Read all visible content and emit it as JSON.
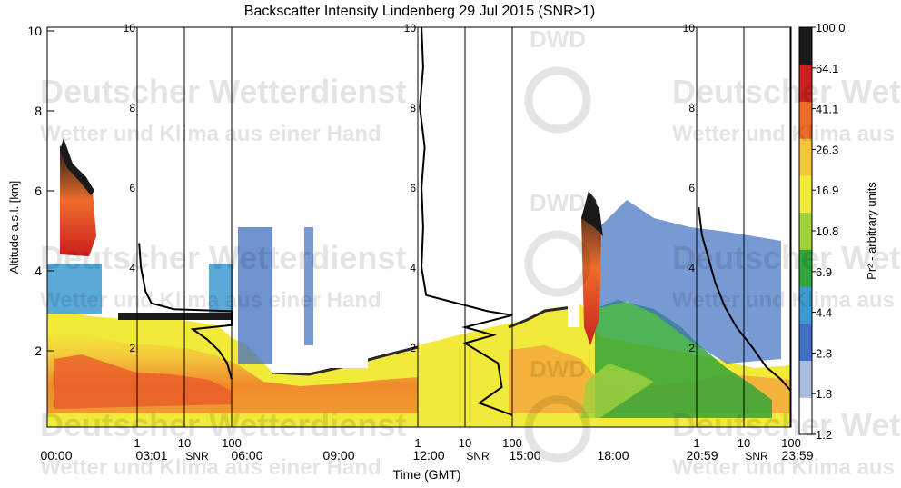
{
  "chart_data": {
    "type": "heatmap",
    "title": "Backscatter Intensity Lindenberg 29 Jul 2015 (SNR>1)",
    "xlabel": "Time (GMT)",
    "ylabel": "Altitude a.s.l. [km]",
    "ylim": [
      0,
      10
    ],
    "y_ticks": [
      2,
      4,
      6,
      8,
      10
    ],
    "x_ticks": [
      "00:00",
      "03:01",
      "06:00",
      "09:00",
      "12:00",
      "15:00",
      "18:00",
      "20:59",
      "23:59"
    ],
    "colorbar": {
      "label": "Pr² - arbitrary units",
      "levels": [
        1.2,
        1.8,
        2.8,
        4.4,
        6.9,
        10.8,
        16.9,
        26.3,
        41.1,
        64.1,
        100.0
      ],
      "level_labels": [
        "1.2",
        "1.8",
        "2.8",
        "4.4",
        "6.9",
        "10.8",
        "16.9",
        "26.3",
        "41.1",
        "64.1",
        "100.0"
      ],
      "colors": [
        "#ffffff",
        "#a8bde0",
        "#3f6fc2",
        "#3d9ad2",
        "#32a63a",
        "#9fd23d",
        "#f2ea38",
        "#f7c43a",
        "#ee6d2a",
        "#cc1f1f",
        "#1a1a1a"
      ]
    },
    "snr_profiles": [
      {
        "time": "03:01",
        "xlabel": "SNR",
        "x_ticks": [
          1,
          10,
          100
        ],
        "x_tick_labels": [
          "1",
          "10",
          "100"
        ],
        "y_tick_labels": [
          "2",
          "4",
          "6",
          "8",
          "10"
        ],
        "points": [
          [
            1.1,
            4.6
          ],
          [
            1.2,
            4.0
          ],
          [
            1.5,
            3.4
          ],
          [
            2.0,
            3.1
          ],
          [
            6,
            2.95
          ],
          [
            100,
            2.9
          ],
          [
            100,
            2.55
          ],
          [
            15,
            2.45
          ],
          [
            30,
            2.2
          ],
          [
            55,
            1.9
          ],
          [
            80,
            1.6
          ],
          [
            100,
            1.2
          ]
        ]
      },
      {
        "time": "12:00",
        "xlabel": "SNR",
        "x_ticks": [
          1,
          10,
          100
        ],
        "x_tick_labels": [
          "1",
          "10",
          "100"
        ],
        "y_tick_labels": [
          "2",
          "4",
          "6",
          "8",
          "10"
        ],
        "points": [
          [
            1.2,
            10.0
          ],
          [
            1.3,
            9.0
          ],
          [
            1.1,
            8.0
          ],
          [
            1.4,
            7.0
          ],
          [
            1.2,
            6.0
          ],
          [
            1.3,
            5.0
          ],
          [
            1.2,
            4.0
          ],
          [
            1.5,
            3.3
          ],
          [
            30,
            2.9
          ],
          [
            100,
            2.8
          ],
          [
            10,
            2.5
          ],
          [
            40,
            2.3
          ],
          [
            10,
            2.1
          ],
          [
            50,
            1.6
          ],
          [
            60,
            1.0
          ],
          [
            20,
            0.6
          ],
          [
            100,
            0.3
          ]
        ]
      },
      {
        "time": "20:59",
        "xlabel": "SNR",
        "x_ticks": [
          1,
          10,
          100
        ],
        "x_tick_labels": [
          "1",
          "10",
          "100"
        ],
        "y_tick_labels": [
          "2",
          "4",
          "6",
          "8",
          "10"
        ],
        "points": [
          [
            1.1,
            5.5
          ],
          [
            1.3,
            4.8
          ],
          [
            1.8,
            4.2
          ],
          [
            2.5,
            3.6
          ],
          [
            4,
            3.0
          ],
          [
            7,
            2.5
          ],
          [
            15,
            2.0
          ],
          [
            30,
            1.5
          ],
          [
            60,
            1.2
          ],
          [
            100,
            0.9
          ]
        ]
      }
    ],
    "watermark": {
      "lines": [
        "Deutscher Wetterdienst",
        "Wetter und Klima aus einer Hand"
      ],
      "logo_text": "DWD"
    }
  }
}
